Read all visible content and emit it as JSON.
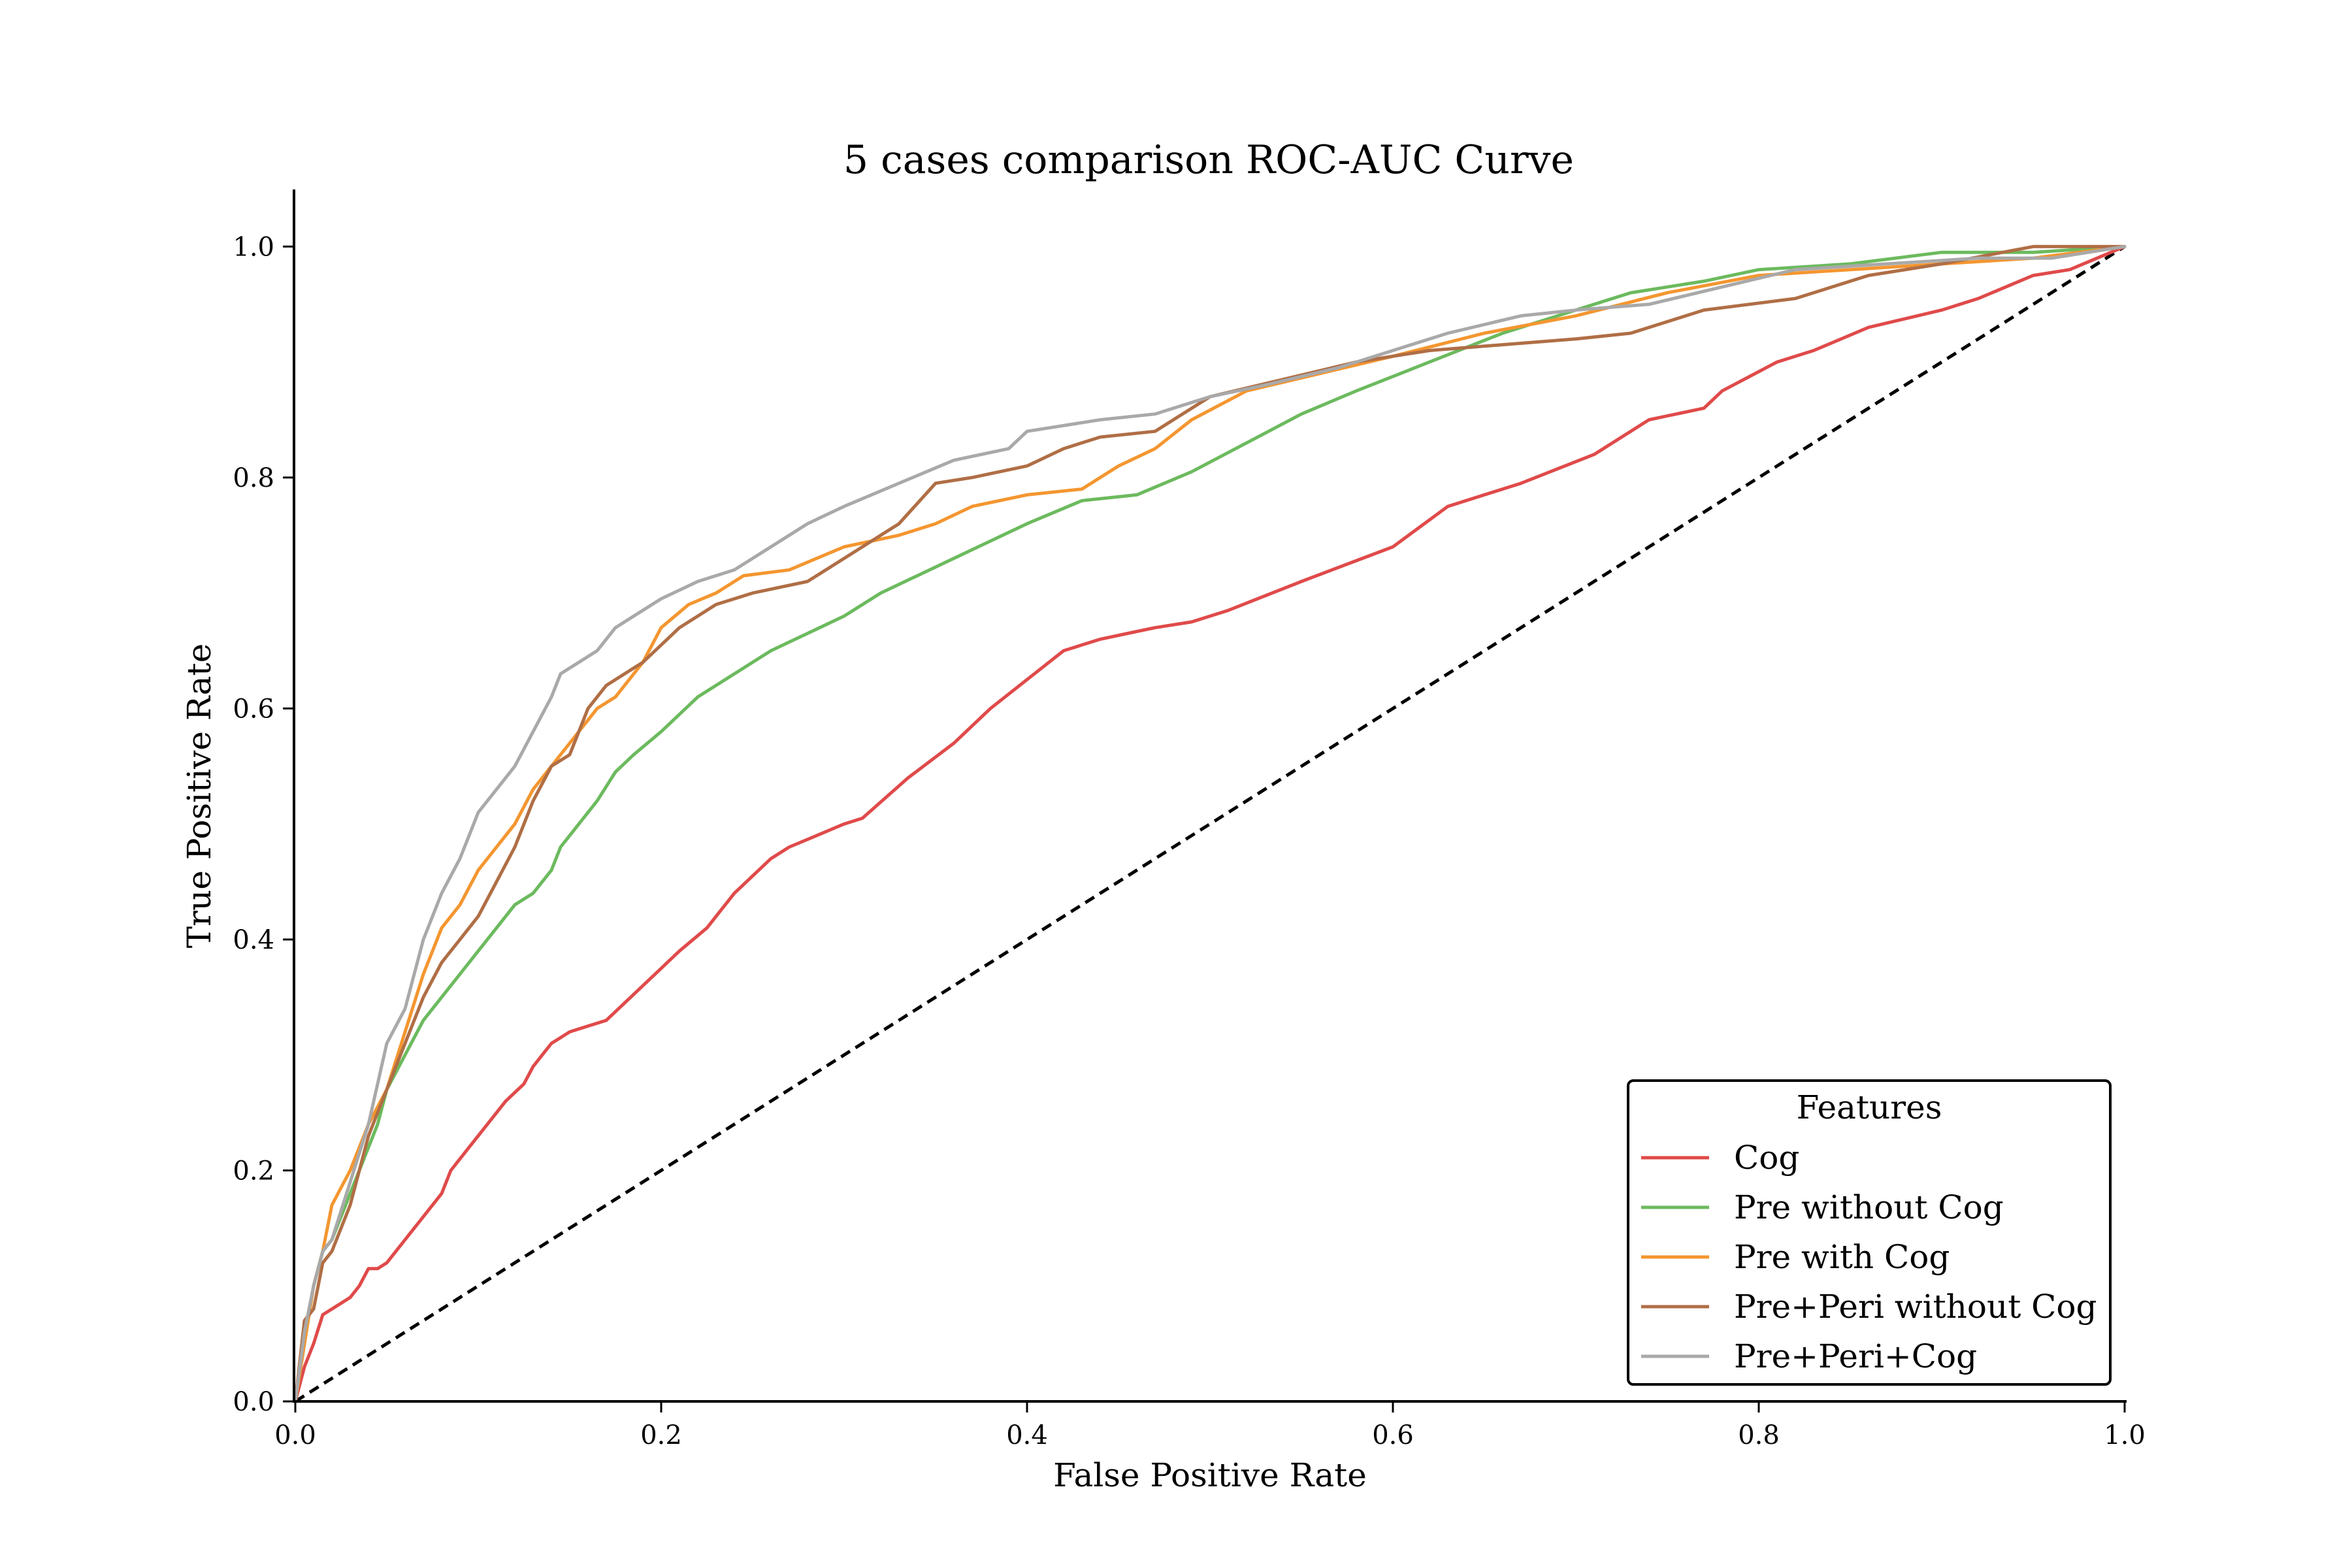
{
  "chart_data": {
    "type": "line",
    "title": "5 cases comparison ROC-AUC Curve",
    "xlabel": "False Positive Rate",
    "ylabel": "True Positive Rate",
    "xlim": [
      0.0,
      1.0
    ],
    "ylim": [
      0.0,
      1.05
    ],
    "grid": false,
    "x_ticks": [
      0.0,
      0.2,
      0.4,
      0.6,
      0.8,
      1.0
    ],
    "x_tick_labels": [
      "0.0",
      "0.2",
      "0.4",
      "0.6",
      "0.8",
      "1.0"
    ],
    "y_ticks": [
      0.0,
      0.2,
      0.4,
      0.6,
      0.8,
      1.0
    ],
    "y_tick_labels": [
      "0.0",
      "0.2",
      "0.4",
      "0.6",
      "0.8",
      "1.0"
    ],
    "legend": {
      "title": "Features",
      "placement": "lower-right"
    },
    "reference_line": {
      "name": "chance",
      "x": [
        0.0,
        1.0
      ],
      "y": [
        0.0,
        1.0
      ],
      "color": "#000000",
      "style": "dashed"
    },
    "series": [
      {
        "name": "Cog",
        "color": "#e04a4a",
        "x": [
          0.0,
          0.005,
          0.01,
          0.015,
          0.02,
          0.025,
          0.03,
          0.035,
          0.04,
          0.045,
          0.05,
          0.055,
          0.06,
          0.07,
          0.08,
          0.085,
          0.09,
          0.095,
          0.1,
          0.105,
          0.11,
          0.115,
          0.125,
          0.13,
          0.135,
          0.14,
          0.145,
          0.15,
          0.16,
          0.17,
          0.19,
          0.21,
          0.225,
          0.24,
          0.26,
          0.27,
          0.285,
          0.3,
          0.31,
          0.335,
          0.36,
          0.37,
          0.38,
          0.4,
          0.42,
          0.44,
          0.455,
          0.47,
          0.49,
          0.51,
          0.55,
          0.6,
          0.63,
          0.67,
          0.71,
          0.74,
          0.77,
          0.78,
          0.81,
          0.83,
          0.86,
          0.9,
          0.92,
          0.95,
          0.97,
          1.0
        ],
        "y": [
          0.0,
          0.03,
          0.05,
          0.075,
          0.08,
          0.085,
          0.09,
          0.1,
          0.115,
          0.115,
          0.12,
          0.13,
          0.14,
          0.16,
          0.18,
          0.2,
          0.21,
          0.22,
          0.23,
          0.24,
          0.25,
          0.26,
          0.275,
          0.29,
          0.3,
          0.31,
          0.315,
          0.32,
          0.325,
          0.33,
          0.36,
          0.39,
          0.41,
          0.44,
          0.47,
          0.48,
          0.49,
          0.5,
          0.505,
          0.54,
          0.57,
          0.585,
          0.6,
          0.625,
          0.65,
          0.66,
          0.665,
          0.67,
          0.675,
          0.685,
          0.71,
          0.74,
          0.775,
          0.795,
          0.82,
          0.85,
          0.86,
          0.875,
          0.9,
          0.91,
          0.93,
          0.945,
          0.955,
          0.975,
          0.98,
          1.0
        ]
      },
      {
        "name": "Pre without Cog",
        "color": "#6cba5e",
        "x": [
          0.0,
          0.005,
          0.01,
          0.015,
          0.02,
          0.03,
          0.04,
          0.045,
          0.05,
          0.06,
          0.07,
          0.08,
          0.09,
          0.1,
          0.11,
          0.12,
          0.13,
          0.14,
          0.145,
          0.155,
          0.165,
          0.175,
          0.185,
          0.2,
          0.22,
          0.24,
          0.26,
          0.28,
          0.3,
          0.32,
          0.34,
          0.36,
          0.38,
          0.4,
          0.43,
          0.46,
          0.49,
          0.52,
          0.55,
          0.58,
          0.62,
          0.66,
          0.7,
          0.73,
          0.77,
          0.8,
          0.85,
          0.9,
          0.95,
          1.0
        ],
        "y": [
          0.0,
          0.05,
          0.1,
          0.13,
          0.14,
          0.18,
          0.22,
          0.24,
          0.27,
          0.3,
          0.33,
          0.35,
          0.37,
          0.39,
          0.41,
          0.43,
          0.44,
          0.46,
          0.48,
          0.5,
          0.52,
          0.545,
          0.56,
          0.58,
          0.61,
          0.63,
          0.65,
          0.665,
          0.68,
          0.7,
          0.715,
          0.73,
          0.745,
          0.76,
          0.78,
          0.785,
          0.805,
          0.83,
          0.855,
          0.875,
          0.9,
          0.925,
          0.945,
          0.96,
          0.97,
          0.98,
          0.985,
          0.995,
          0.995,
          1.0
        ]
      },
      {
        "name": "Pre with Cog",
        "color": "#f49630",
        "x": [
          0.0,
          0.005,
          0.01,
          0.015,
          0.02,
          0.03,
          0.04,
          0.05,
          0.06,
          0.07,
          0.08,
          0.09,
          0.1,
          0.11,
          0.12,
          0.13,
          0.14,
          0.155,
          0.165,
          0.175,
          0.19,
          0.2,
          0.215,
          0.23,
          0.245,
          0.27,
          0.3,
          0.33,
          0.35,
          0.37,
          0.4,
          0.43,
          0.45,
          0.47,
          0.49,
          0.52,
          0.56,
          0.6,
          0.65,
          0.7,
          0.75,
          0.8,
          0.85,
          0.9,
          0.95,
          1.0
        ],
        "y": [
          0.0,
          0.05,
          0.1,
          0.13,
          0.17,
          0.2,
          0.24,
          0.27,
          0.32,
          0.37,
          0.41,
          0.43,
          0.46,
          0.48,
          0.5,
          0.53,
          0.55,
          0.58,
          0.6,
          0.61,
          0.64,
          0.67,
          0.69,
          0.7,
          0.715,
          0.72,
          0.74,
          0.75,
          0.76,
          0.775,
          0.785,
          0.79,
          0.81,
          0.825,
          0.85,
          0.875,
          0.89,
          0.905,
          0.925,
          0.94,
          0.96,
          0.975,
          0.98,
          0.985,
          0.99,
          1.0
        ]
      },
      {
        "name": "Pre+Peri without Cog",
        "color": "#b06e45",
        "x": [
          0.0,
          0.005,
          0.01,
          0.015,
          0.02,
          0.03,
          0.04,
          0.05,
          0.06,
          0.07,
          0.08,
          0.09,
          0.1,
          0.11,
          0.12,
          0.13,
          0.14,
          0.15,
          0.16,
          0.17,
          0.18,
          0.19,
          0.2,
          0.21,
          0.23,
          0.25,
          0.28,
          0.31,
          0.33,
          0.35,
          0.37,
          0.4,
          0.42,
          0.44,
          0.47,
          0.5,
          0.54,
          0.58,
          0.62,
          0.66,
          0.7,
          0.73,
          0.77,
          0.82,
          0.86,
          0.9,
          0.95,
          1.0
        ],
        "y": [
          0.0,
          0.07,
          0.08,
          0.12,
          0.13,
          0.17,
          0.23,
          0.27,
          0.31,
          0.35,
          0.38,
          0.4,
          0.42,
          0.45,
          0.48,
          0.52,
          0.55,
          0.56,
          0.6,
          0.62,
          0.63,
          0.64,
          0.655,
          0.67,
          0.69,
          0.7,
          0.71,
          0.74,
          0.76,
          0.795,
          0.8,
          0.81,
          0.825,
          0.835,
          0.84,
          0.87,
          0.885,
          0.9,
          0.91,
          0.915,
          0.92,
          0.925,
          0.945,
          0.955,
          0.975,
          0.985,
          1.0,
          1.0
        ]
      },
      {
        "name": "Pre+Peri+Cog",
        "color": "#a9a9a9",
        "x": [
          0.0,
          0.005,
          0.01,
          0.015,
          0.02,
          0.03,
          0.04,
          0.05,
          0.06,
          0.07,
          0.075,
          0.08,
          0.09,
          0.095,
          0.1,
          0.11,
          0.12,
          0.13,
          0.14,
          0.145,
          0.155,
          0.165,
          0.175,
          0.185,
          0.2,
          0.22,
          0.24,
          0.26,
          0.28,
          0.3,
          0.33,
          0.36,
          0.39,
          0.4,
          0.42,
          0.44,
          0.47,
          0.5,
          0.53,
          0.57,
          0.6,
          0.63,
          0.67,
          0.7,
          0.74,
          0.78,
          0.82,
          0.87,
          0.92,
          0.96,
          1.0
        ],
        "y": [
          0.0,
          0.06,
          0.1,
          0.13,
          0.14,
          0.19,
          0.24,
          0.31,
          0.34,
          0.4,
          0.42,
          0.44,
          0.47,
          0.49,
          0.51,
          0.53,
          0.55,
          0.58,
          0.61,
          0.63,
          0.64,
          0.65,
          0.67,
          0.68,
          0.695,
          0.71,
          0.72,
          0.74,
          0.76,
          0.775,
          0.795,
          0.815,
          0.825,
          0.84,
          0.845,
          0.85,
          0.855,
          0.87,
          0.88,
          0.895,
          0.91,
          0.925,
          0.94,
          0.945,
          0.95,
          0.965,
          0.98,
          0.985,
          0.99,
          0.99,
          1.0
        ]
      }
    ]
  }
}
